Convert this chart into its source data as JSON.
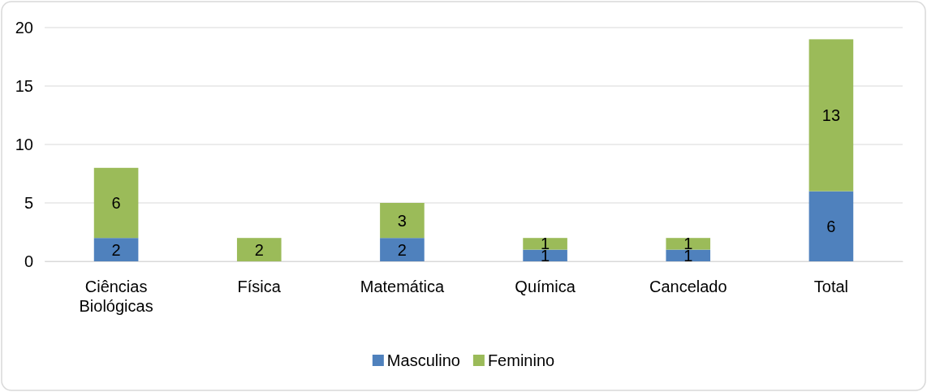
{
  "chart_data": {
    "type": "bar",
    "stacked": true,
    "categories": [
      "Ciências Biológicas",
      "Física",
      "Matemática",
      "Química",
      "Cancelado",
      "Total"
    ],
    "series": [
      {
        "name": "Masculino",
        "color": "#4f81bd",
        "values": [
          2,
          0,
          2,
          1,
          1,
          6
        ],
        "value_labels": [
          "2",
          null,
          "2",
          "1",
          "1",
          "6"
        ]
      },
      {
        "name": "Feminino",
        "color": "#9bbb59",
        "values": [
          6,
          2,
          3,
          1,
          1,
          13
        ],
        "value_labels": [
          "6",
          "2",
          "3",
          "1",
          "1",
          "13"
        ]
      }
    ],
    "ylim": [
      0,
      20
    ],
    "yticks": [
      0,
      5,
      10,
      15,
      20
    ],
    "grid": "y",
    "legend": "bottom"
  }
}
